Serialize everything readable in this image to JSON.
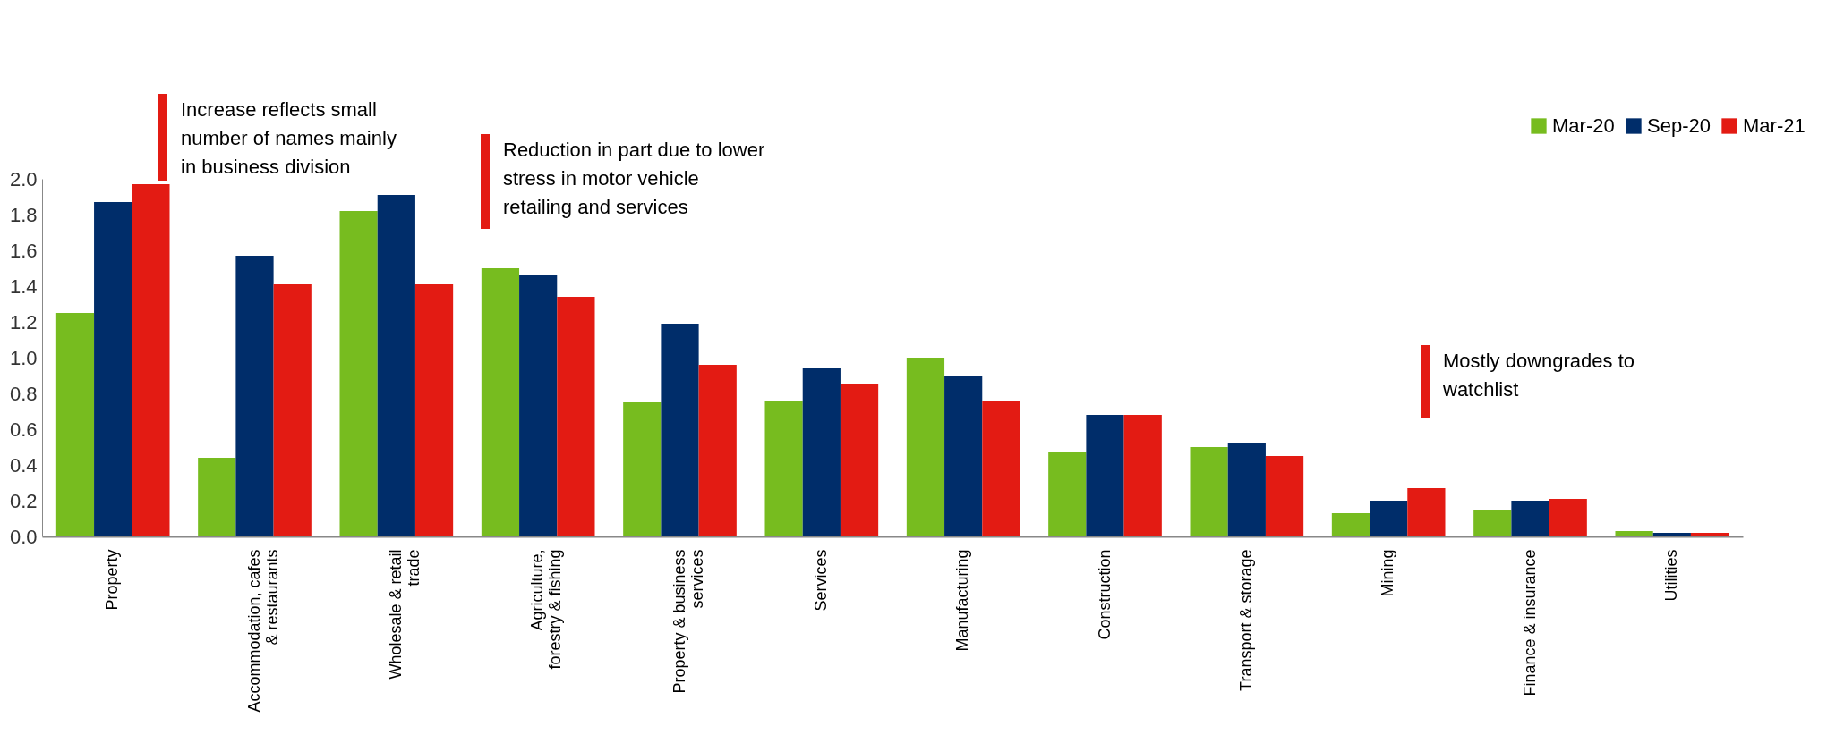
{
  "chart_data": {
    "type": "bar",
    "categories": [
      "Property",
      "Accommodation, cafes & restaurants",
      "Wholesale & retail trade",
      "Agriculture, forestry & fishing",
      "Property & business services",
      "Services",
      "Manufacturing",
      "Construction",
      "Transport & storage",
      "Mining",
      "Finance & insurance",
      "Utilities"
    ],
    "series": [
      {
        "name": "Mar-20",
        "color": "#77bc1f",
        "values": [
          1.25,
          0.44,
          1.82,
          1.5,
          0.75,
          0.76,
          1.0,
          0.47,
          0.5,
          0.13,
          0.15,
          0.03
        ]
      },
      {
        "name": "Sep-20",
        "color": "#002d6a",
        "values": [
          1.87,
          1.57,
          1.91,
          1.46,
          1.19,
          0.94,
          0.9,
          0.68,
          0.52,
          0.2,
          0.2,
          0.02
        ]
      },
      {
        "name": "Mar-21",
        "color": "#e31b13",
        "values": [
          1.97,
          1.41,
          1.41,
          1.34,
          0.96,
          0.85,
          0.76,
          0.68,
          0.45,
          0.27,
          0.21,
          0.02
        ]
      }
    ],
    "ylim": [
      0,
      2.0
    ],
    "yticks": [
      {
        "value": 0,
        "label": "0.0"
      },
      {
        "value": 0.2,
        "label": "0.2"
      },
      {
        "value": 0.4,
        "label": "0.4"
      },
      {
        "value": 0.6,
        "label": "0.6"
      },
      {
        "value": 0.8,
        "label": "0.8"
      },
      {
        "value": 1.0,
        "label": "1.0"
      },
      {
        "value": 1.2,
        "label": "1.2"
      },
      {
        "value": 1.4,
        "label": "1.4"
      },
      {
        "value": 1.6,
        "label": "1.6"
      },
      {
        "value": 1.8,
        "label": "1.8"
      },
      {
        "value": 2.0,
        "label": "2.0"
      }
    ],
    "annotations": [
      "Increase reflects small number of names mainly in business division",
      "Reduction in part due to lower stress in motor vehicle retailing and services",
      "Mostly downgrades to watchlist"
    ],
    "grid": false,
    "legend": "top right"
  }
}
